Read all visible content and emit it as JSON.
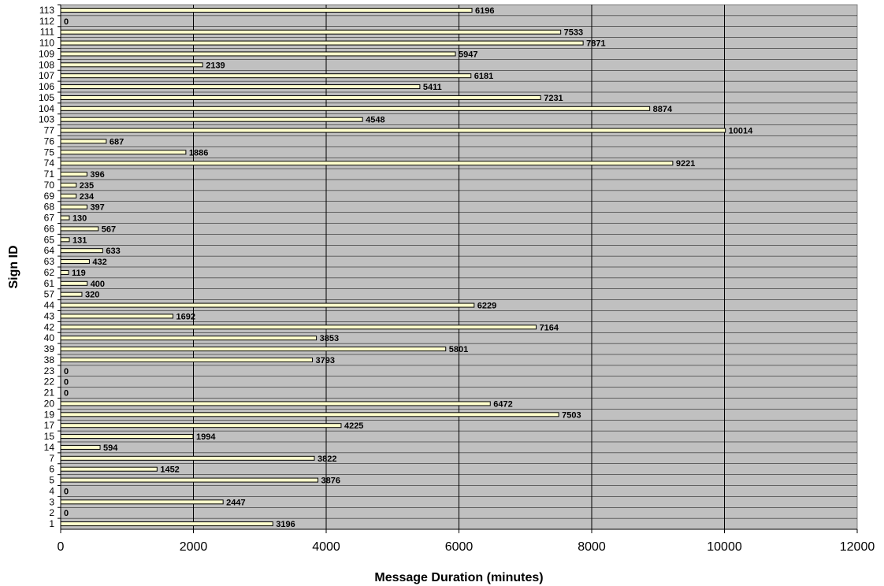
{
  "chart_data": {
    "type": "bar",
    "orientation": "horizontal",
    "categories": [
      "113",
      "112",
      "111",
      "110",
      "109",
      "108",
      "107",
      "106",
      "105",
      "104",
      "103",
      "77",
      "76",
      "75",
      "74",
      "71",
      "70",
      "69",
      "68",
      "67",
      "66",
      "65",
      "64",
      "63",
      "62",
      "61",
      "57",
      "44",
      "43",
      "42",
      "40",
      "39",
      "38",
      "23",
      "22",
      "21",
      "20",
      "19",
      "17",
      "15",
      "14",
      "7",
      "6",
      "5",
      "4",
      "3",
      "2",
      "1"
    ],
    "values": [
      6196,
      0,
      7533,
      7871,
      5947,
      2139,
      6181,
      5411,
      7231,
      8874,
      4548,
      10014,
      687,
      1886,
      9221,
      396,
      235,
      234,
      397,
      130,
      567,
      131,
      633,
      432,
      119,
      400,
      320,
      6229,
      1692,
      7164,
      3853,
      5801,
      3793,
      0,
      0,
      0,
      6472,
      7503,
      4225,
      1994,
      594,
      3822,
      1452,
      3876,
      0,
      2447,
      0,
      3196
    ],
    "xlabel": "Message Duration (minutes)",
    "ylabel": "Sign ID",
    "xlim": [
      0,
      12000
    ],
    "x_ticks": [
      "0",
      "2000",
      "4000",
      "6000",
      "8000",
      "10000",
      "12000"
    ],
    "grid": true,
    "colors": {
      "plot_background": "#c0c0c0",
      "bar_fill": "#ffffcc",
      "bar_stroke": "#000000",
      "gridline": "#000000"
    }
  }
}
